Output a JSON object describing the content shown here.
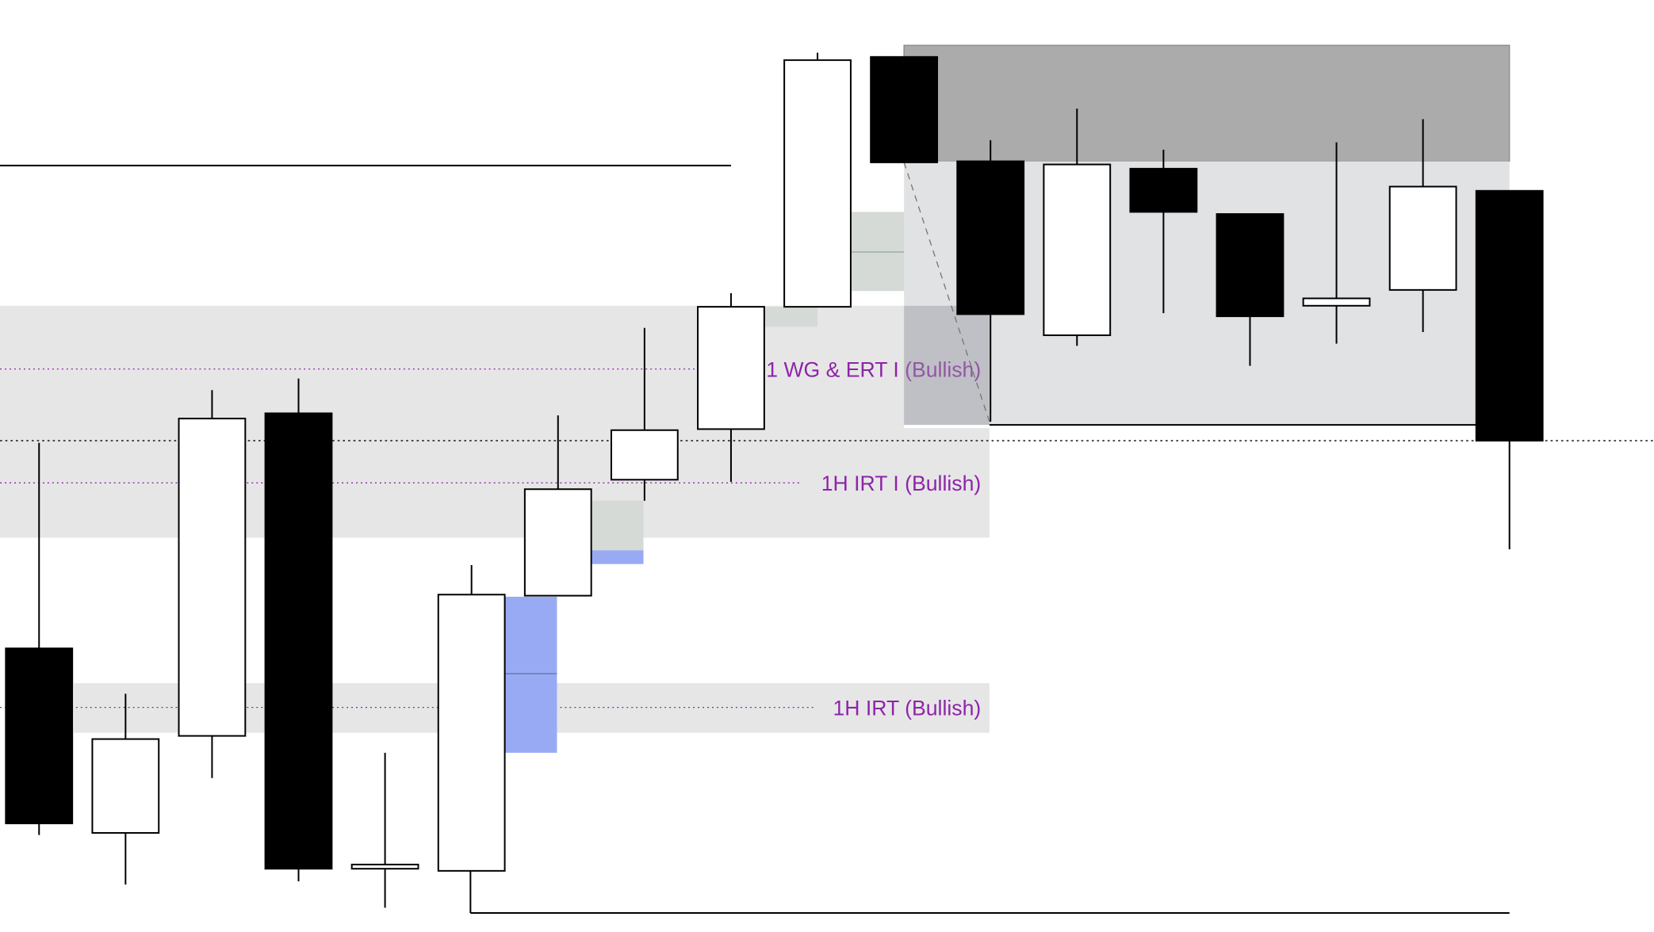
{
  "chart_data": {
    "type": "candlestick",
    "ylim": [
      0,
      884
    ],
    "up_color": "#ffffff",
    "down_color": "#000000",
    "zone_color": "#e6e6e6",
    "label_color": "#8e24aa",
    "candles": [
      {
        "open": 269,
        "high": 464,
        "low": 92,
        "close": 103
      },
      {
        "open": 94,
        "high": 226,
        "low": 45,
        "close": 183
      },
      {
        "open": 186,
        "high": 514,
        "low": 146,
        "close": 487
      },
      {
        "open": 492,
        "high": 525,
        "low": 48,
        "close": 60
      },
      {
        "open": 60,
        "high": 170,
        "low": 23,
        "close": 64
      },
      {
        "open": 58,
        "high": 348,
        "low": 58,
        "close": 320
      },
      {
        "open": 319,
        "high": 490,
        "low": 319,
        "close": 420
      },
      {
        "open": 429,
        "high": 573,
        "low": 409,
        "close": 476
      },
      {
        "open": 477,
        "high": 606,
        "low": 427,
        "close": 593
      },
      {
        "open": 593,
        "high": 834,
        "low": 593,
        "close": 827
      },
      {
        "open": 830,
        "high": 830,
        "low": 730,
        "close": 730
      },
      {
        "open": 731,
        "high": 751,
        "low": 484,
        "close": 586
      },
      {
        "open": 566,
        "high": 781,
        "low": 556,
        "close": 728
      },
      {
        "open": 724,
        "high": 742,
        "low": 587,
        "close": 683
      },
      {
        "open": 681,
        "high": 681,
        "low": 537,
        "close": 584
      },
      {
        "open": 594,
        "high": 749,
        "low": 558,
        "close": 601
      },
      {
        "open": 609,
        "high": 771,
        "low": 569,
        "close": 707
      },
      {
        "open": 703,
        "high": 703,
        "low": 363,
        "close": 466
      }
    ],
    "zones": [
      {
        "label": "1 WG & ERT I (Bullish)",
        "low": 478,
        "high": 594,
        "mid": 534
      },
      {
        "label": "1H IRT I (Bullish)",
        "low": 374,
        "high": 478,
        "mid": 426
      },
      {
        "label": "1H IRT (Bullish)",
        "low": 189,
        "high": 236,
        "mid": 213
      }
    ],
    "boxes": [
      {
        "low": 731,
        "high": 841,
        "color": "#ababab"
      },
      {
        "low": 481,
        "high": 731,
        "color": "#e1e2e4"
      }
    ],
    "levels": [
      {
        "value": 727,
        "style": "solid"
      },
      {
        "value": 466,
        "style": "dotted"
      },
      {
        "value": 18,
        "style": "solid"
      }
    ]
  }
}
